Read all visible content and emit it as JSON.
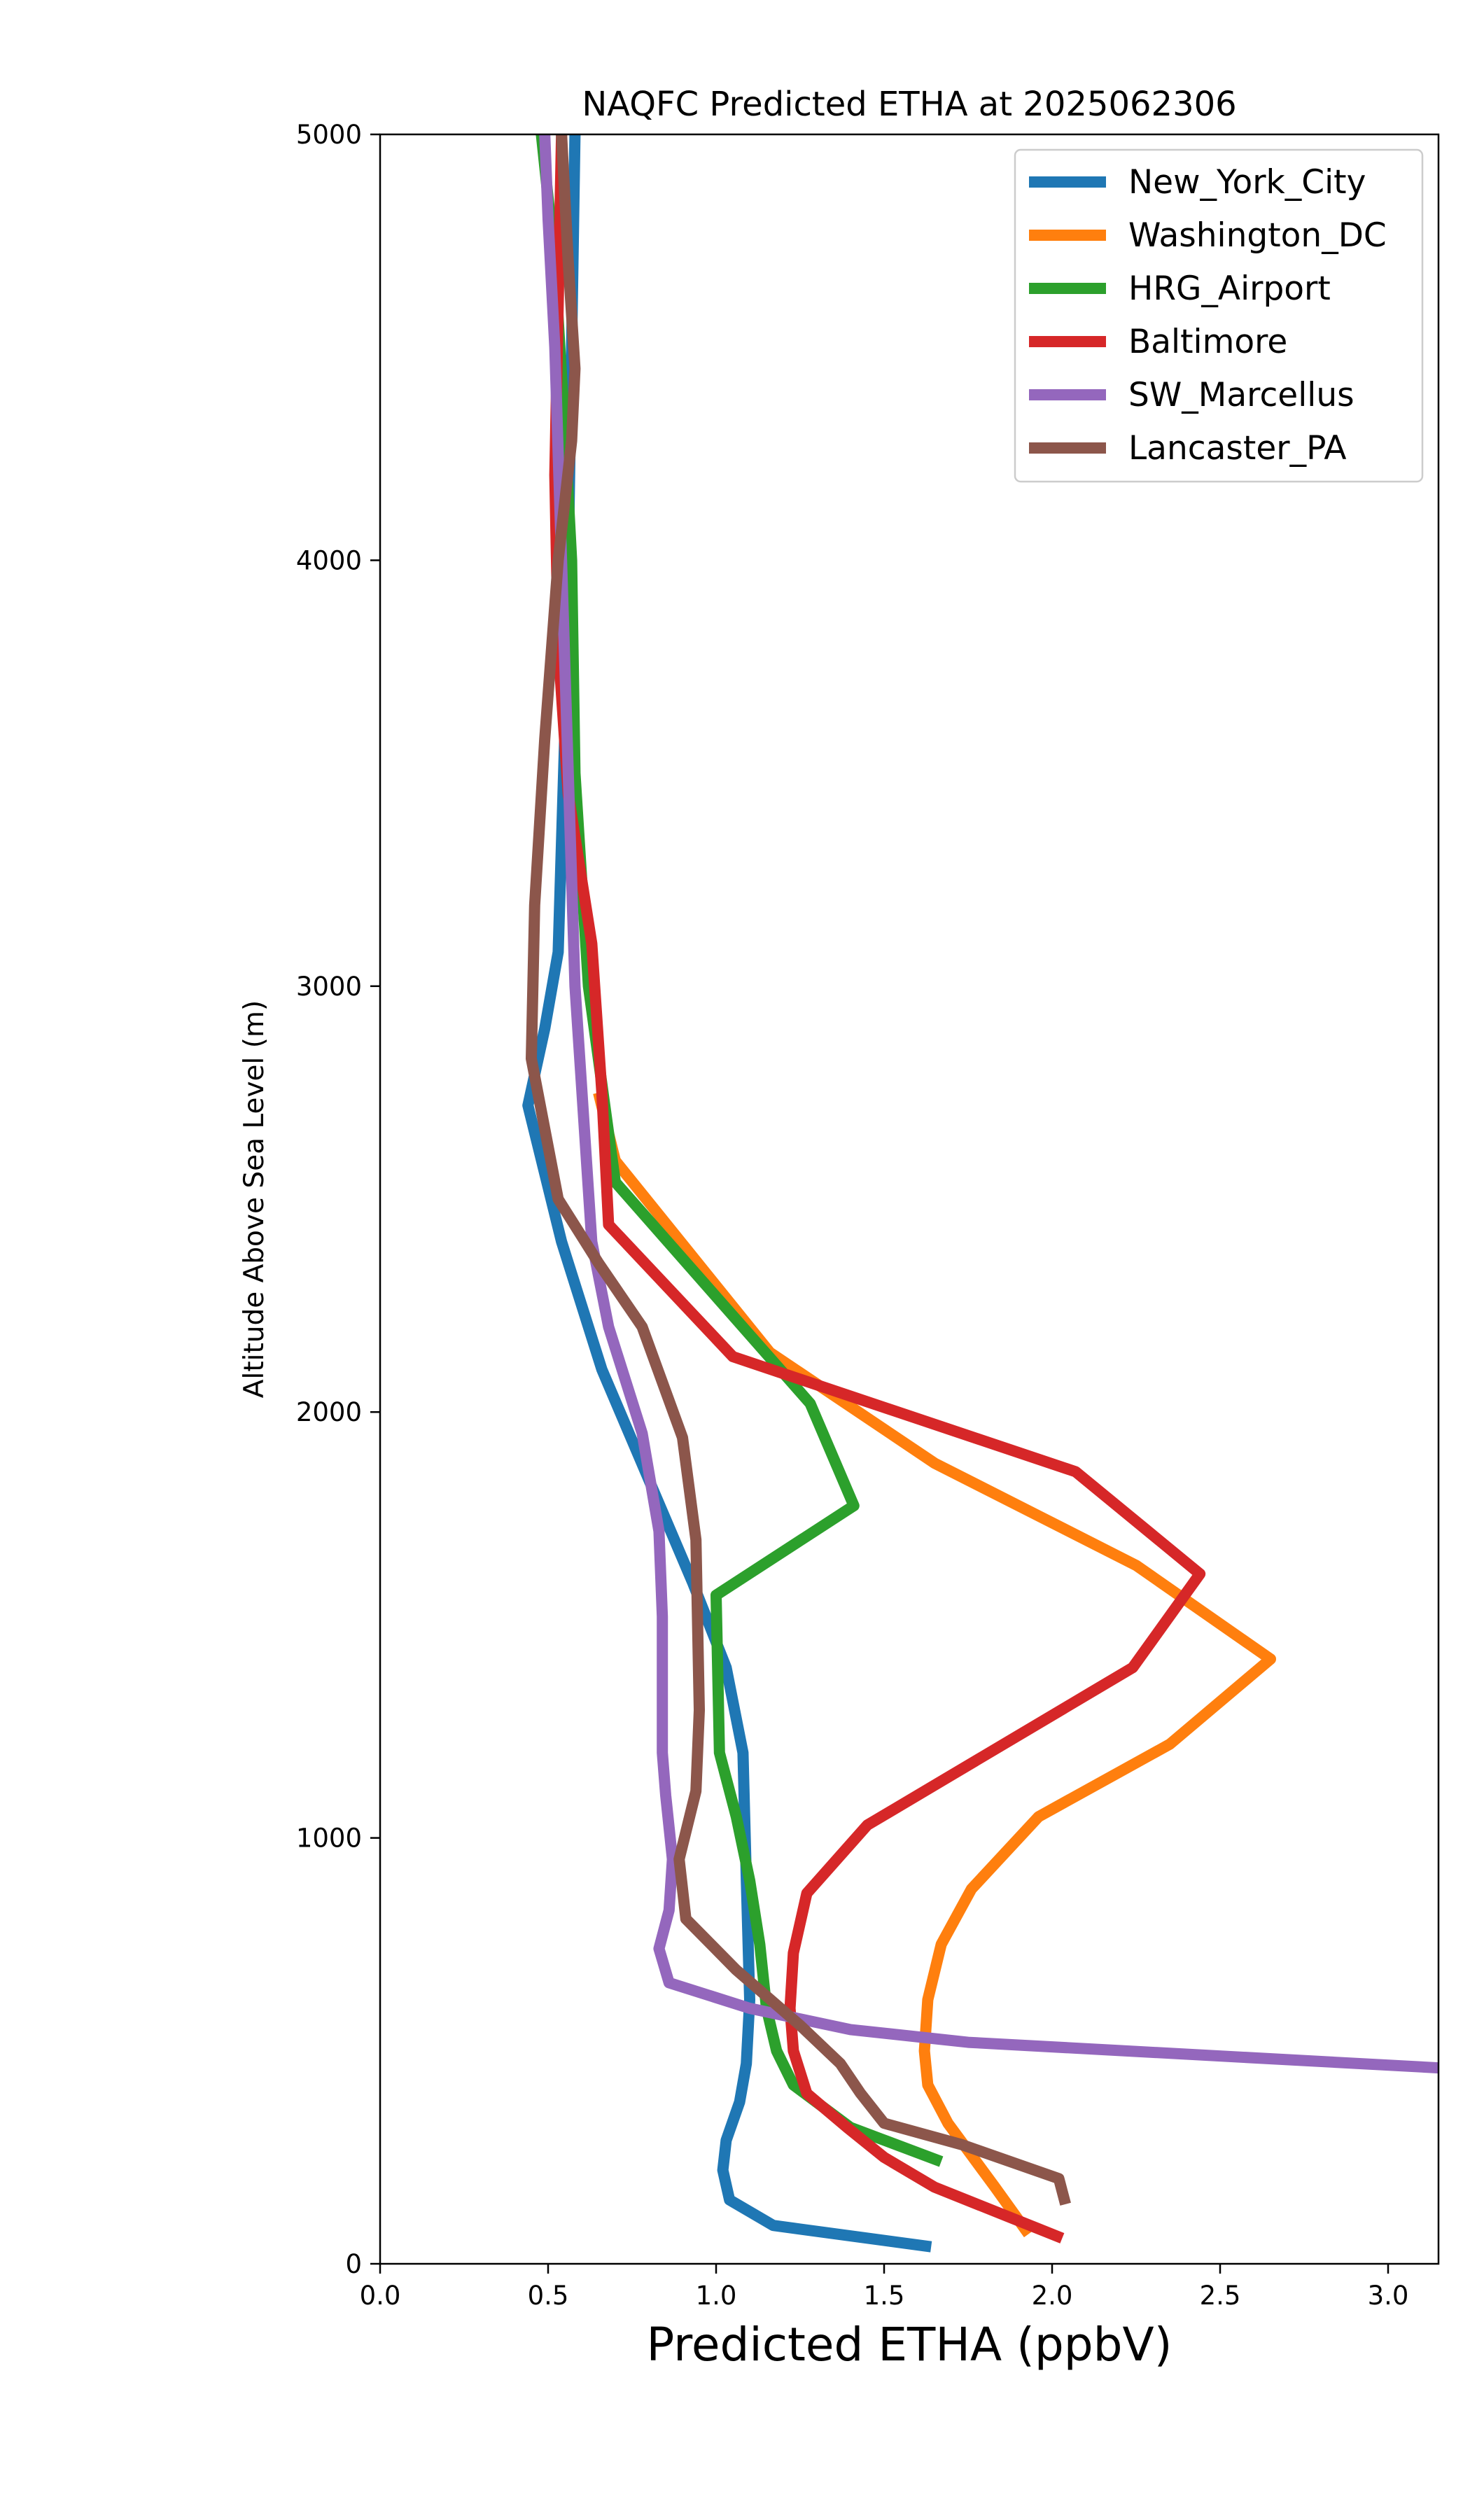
{
  "chart_data": {
    "type": "line",
    "title": "NAQFC Predicted ETHA at 2025062306",
    "xlabel": "Predicted ETHA (ppbV)",
    "ylabel": "Altitude Above Sea Level (m)",
    "xlim": [
      0,
      3.15
    ],
    "ylim": [
      0,
      5000
    ],
    "xticks": [
      "0.0",
      "0.5",
      "1.0",
      "1.5",
      "2.0",
      "2.5",
      "3.0"
    ],
    "xtick_values": [
      0,
      0.5,
      1.0,
      1.5,
      2.0,
      2.5,
      3.0
    ],
    "yticks": [
      "0",
      "1000",
      "2000",
      "3000",
      "4000",
      "5000"
    ],
    "ytick_values": [
      0,
      1000,
      2000,
      3000,
      4000,
      5000
    ],
    "grid": false,
    "legend_position": "top-right",
    "series": [
      {
        "name": "New_York_City",
        "color": "#1f77b4",
        "x": [
          1.64,
          1.17,
          1.04,
          1.02,
          1.03,
          1.07,
          1.09,
          1.1,
          1.09,
          1.08,
          1.03,
          0.93,
          0.66,
          0.54,
          0.44,
          0.49,
          0.53,
          0.55,
          0.56,
          0.57,
          0.58
        ],
        "y": [
          40,
          90,
          150,
          220,
          290,
          380,
          470,
          620,
          900,
          1200,
          1400,
          1600,
          2100,
          2400,
          2720,
          2900,
          3080,
          3600,
          4000,
          4500,
          5000
        ]
      },
      {
        "name": "Washington_DC",
        "color": "#ff7f0e",
        "x": [
          1.93,
          1.83,
          1.69,
          1.63,
          1.62,
          1.63,
          1.67,
          1.76,
          1.96,
          2.35,
          2.65,
          2.25,
          1.65,
          1.16,
          0.7,
          0.65
        ],
        "y": [
          70,
          180,
          330,
          420,
          500,
          620,
          750,
          880,
          1050,
          1220,
          1420,
          1640,
          1880,
          2140,
          2590,
          2750
        ]
      },
      {
        "name": "HRG_Airport",
        "color": "#2ca02c",
        "x": [
          1.67,
          1.4,
          1.23,
          1.18,
          1.15,
          1.13,
          1.1,
          1.06,
          1.01,
          1.0,
          1.41,
          1.28,
          0.7,
          0.62,
          0.58,
          0.57,
          0.55,
          0.52,
          0.48
        ],
        "y": [
          240,
          320,
          420,
          500,
          600,
          750,
          900,
          1050,
          1200,
          1570,
          1780,
          2020,
          2540,
          3000,
          3500,
          4000,
          4300,
          4700,
          5000
        ]
      },
      {
        "name": "Baltimore",
        "color": "#d62728",
        "x": [
          2.03,
          1.65,
          1.5,
          1.39,
          1.27,
          1.23,
          1.22,
          1.23,
          1.27,
          1.45,
          2.24,
          2.44,
          2.07,
          1.05,
          0.68,
          0.66,
          0.63,
          0.56,
          0.53,
          0.52,
          0.53,
          0.54
        ],
        "y": [
          60,
          180,
          250,
          320,
          400,
          500,
          600,
          730,
          870,
          1030,
          1400,
          1620,
          1860,
          2130,
          2440,
          2750,
          3100,
          3450,
          3800,
          4200,
          4600,
          5000
        ]
      },
      {
        "name": "SW_Marcellus",
        "color": "#9467bd",
        "x": [
          3.15,
          1.75,
          1.4,
          1.1,
          0.86,
          0.83,
          0.86,
          0.87,
          0.85,
          0.84,
          0.84,
          0.83,
          0.78,
          0.68,
          0.63,
          0.58,
          0.56,
          0.54,
          0.52,
          0.5,
          0.49
        ],
        "y": [
          460,
          520,
          550,
          600,
          660,
          740,
          830,
          950,
          1100,
          1200,
          1520,
          1720,
          1950,
          2200,
          2400,
          3000,
          3500,
          4000,
          4500,
          4800,
          5000
        ]
      },
      {
        "name": "Lancaster_PA",
        "color": "#8c564b",
        "x": [
          2.04,
          2.02,
          1.73,
          1.5,
          1.43,
          1.37,
          1.25,
          1.06,
          0.91,
          0.89,
          0.94,
          0.95,
          0.94,
          0.9,
          0.78,
          0.65,
          0.53,
          0.45,
          0.46,
          0.49,
          0.53,
          0.57,
          0.58,
          0.56,
          0.54
        ],
        "y": [
          140,
          200,
          280,
          330,
          400,
          470,
          560,
          690,
          810,
          950,
          1110,
          1300,
          1700,
          1940,
          2200,
          2350,
          2500,
          2830,
          3190,
          3580,
          4000,
          4280,
          4450,
          4700,
          5000
        ]
      }
    ]
  }
}
